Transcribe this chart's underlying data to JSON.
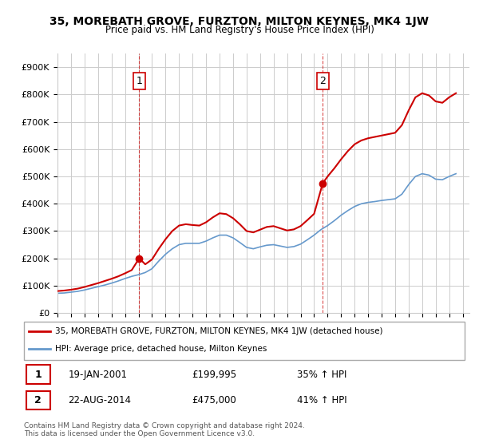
{
  "title": "35, MOREBATH GROVE, FURZTON, MILTON KEYNES, MK4 1JW",
  "subtitle": "Price paid vs. HM Land Registry's House Price Index (HPI)",
  "legend_line1": "35, MOREBATH GROVE, FURZTON, MILTON KEYNES, MK4 1JW (detached house)",
  "legend_line2": "HPI: Average price, detached house, Milton Keynes",
  "table_row1": [
    "1",
    "19-JAN-2001",
    "£199,995",
    "35% ↑ HPI"
  ],
  "table_row2": [
    "2",
    "22-AUG-2014",
    "£475,000",
    "41% ↑ HPI"
  ],
  "footer1": "Contains HM Land Registry data © Crown copyright and database right 2024.",
  "footer2": "This data is licensed under the Open Government Licence v3.0.",
  "sale1_x": 2001.05,
  "sale1_y": 199995,
  "sale2_x": 2014.64,
  "sale2_y": 475000,
  "sale_color": "#cc0000",
  "hpi_color": "#6699cc",
  "ylim": [
    0,
    950000
  ],
  "xlim_left": 1995.0,
  "xlim_right": 2025.5,
  "background_color": "#ffffff",
  "grid_color": "#cccccc",
  "hpi_data_x": [
    1995.0,
    1995.5,
    1996.0,
    1996.5,
    1997.0,
    1997.5,
    1998.0,
    1998.5,
    1999.0,
    1999.5,
    2000.0,
    2000.5,
    2001.0,
    2001.5,
    2002.0,
    2002.5,
    2003.0,
    2003.5,
    2004.0,
    2004.5,
    2005.0,
    2005.5,
    2006.0,
    2006.5,
    2007.0,
    2007.5,
    2008.0,
    2008.5,
    2009.0,
    2009.5,
    2010.0,
    2010.5,
    2011.0,
    2011.5,
    2012.0,
    2012.5,
    2013.0,
    2013.5,
    2014.0,
    2014.5,
    2015.0,
    2015.5,
    2016.0,
    2016.5,
    2017.0,
    2017.5,
    2018.0,
    2018.5,
    2019.0,
    2019.5,
    2020.0,
    2020.5,
    2021.0,
    2021.5,
    2022.0,
    2022.5,
    2023.0,
    2023.5,
    2024.0,
    2024.5
  ],
  "hpi_data_y": [
    72000,
    73000,
    76000,
    79000,
    84000,
    90000,
    96000,
    102000,
    109000,
    117000,
    126000,
    134000,
    140000,
    148000,
    162000,
    190000,
    215000,
    235000,
    250000,
    255000,
    255000,
    255000,
    263000,
    275000,
    285000,
    285000,
    275000,
    258000,
    240000,
    235000,
    242000,
    248000,
    250000,
    245000,
    240000,
    243000,
    252000,
    268000,
    285000,
    305000,
    320000,
    338000,
    358000,
    375000,
    390000,
    400000,
    405000,
    408000,
    412000,
    415000,
    418000,
    435000,
    470000,
    500000,
    510000,
    505000,
    490000,
    488000,
    500000,
    510000
  ],
  "property_data_x": [
    1995.0,
    1995.5,
    1996.0,
    1996.5,
    1997.0,
    1997.5,
    1998.0,
    1998.5,
    1999.0,
    1999.5,
    2000.0,
    2000.5,
    2001.05,
    2001.5,
    2002.0,
    2002.5,
    2003.0,
    2003.5,
    2004.0,
    2004.5,
    2005.0,
    2005.5,
    2006.0,
    2006.5,
    2007.0,
    2007.5,
    2008.0,
    2008.5,
    2009.0,
    2009.5,
    2010.0,
    2010.5,
    2011.0,
    2011.5,
    2012.0,
    2012.5,
    2013.0,
    2013.5,
    2014.0,
    2014.64,
    2015.0,
    2015.5,
    2016.0,
    2016.5,
    2017.0,
    2017.5,
    2018.0,
    2018.5,
    2019.0,
    2019.5,
    2020.0,
    2020.5,
    2021.0,
    2021.5,
    2022.0,
    2022.5,
    2023.0,
    2023.5,
    2024.0,
    2024.5
  ],
  "property_data_y": [
    80000,
    82000,
    85000,
    89000,
    95000,
    102000,
    109000,
    117000,
    125000,
    134000,
    145000,
    157000,
    199995,
    178000,
    196000,
    235000,
    270000,
    300000,
    320000,
    325000,
    322000,
    320000,
    332000,
    350000,
    365000,
    362000,
    347000,
    325000,
    300000,
    295000,
    305000,
    315000,
    318000,
    310000,
    302000,
    306000,
    318000,
    340000,
    363000,
    475000,
    500000,
    530000,
    563000,
    593000,
    618000,
    632000,
    640000,
    645000,
    650000,
    655000,
    660000,
    688000,
    742000,
    790000,
    805000,
    797000,
    775000,
    770000,
    790000,
    805000
  ]
}
